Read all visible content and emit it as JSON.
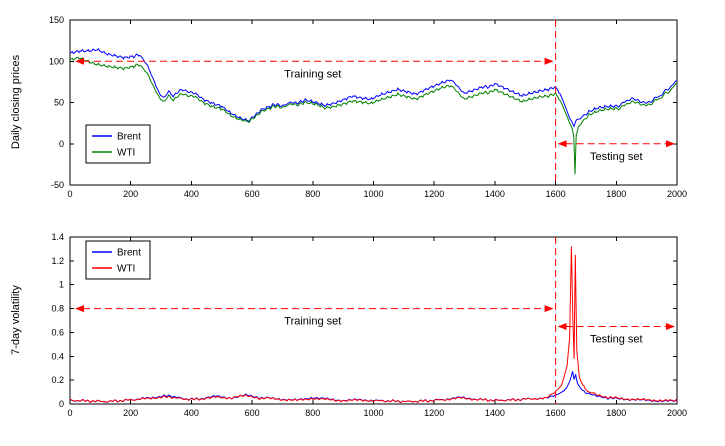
{
  "figure": {
    "background": "#ffffff"
  },
  "colors": {
    "annotation": "#ff0000",
    "axis": "#000000",
    "brent": "#0000ff",
    "wti_price": "#008000",
    "wti_volatility": "#ff0000"
  },
  "chart_data": [
    {
      "type": "line",
      "title": "",
      "xlabel": "",
      "ylabel": "Daily closing prices",
      "xlim": [
        0,
        2000
      ],
      "ylim": [
        -50,
        150
      ],
      "xticks": [
        0,
        200,
        400,
        600,
        800,
        1000,
        1200,
        1400,
        1600,
        1800,
        2000
      ],
      "yticks": [
        -50,
        0,
        50,
        100,
        150
      ],
      "grid": false,
      "legend": {
        "position": "lower-left"
      },
      "series": [
        {
          "name": "Brent",
          "color": "#0000ff",
          "points": [
            [
              0,
              109
            ],
            [
              30,
              112
            ],
            [
              60,
              113
            ],
            [
              90,
              115
            ],
            [
              120,
              110
            ],
            [
              150,
              107
            ],
            [
              180,
              104
            ],
            [
              210,
              105
            ],
            [
              230,
              108
            ],
            [
              255,
              95
            ],
            [
              275,
              78
            ],
            [
              295,
              60
            ],
            [
              310,
              55
            ],
            [
              325,
              63
            ],
            [
              340,
              57
            ],
            [
              360,
              65
            ],
            [
              385,
              64
            ],
            [
              410,
              61
            ],
            [
              440,
              53
            ],
            [
              470,
              49
            ],
            [
              500,
              46
            ],
            [
              530,
              38
            ],
            [
              560,
              32
            ],
            [
              590,
              28
            ],
            [
              610,
              34
            ],
            [
              630,
              42
            ],
            [
              660,
              46
            ],
            [
              700,
              47
            ],
            [
              740,
              50
            ],
            [
              780,
              52
            ],
            [
              810,
              50
            ],
            [
              840,
              47
            ],
            [
              870,
              50
            ],
            [
              900,
              54
            ],
            [
              930,
              58
            ],
            [
              960,
              55
            ],
            [
              990,
              53
            ],
            [
              1020,
              58
            ],
            [
              1050,
              62
            ],
            [
              1080,
              66
            ],
            [
              1110,
              64
            ],
            [
              1140,
              61
            ],
            [
              1170,
              66
            ],
            [
              1200,
              70
            ],
            [
              1230,
              74
            ],
            [
              1255,
              78
            ],
            [
              1275,
              70
            ],
            [
              1300,
              61
            ],
            [
              1330,
              64
            ],
            [
              1360,
              68
            ],
            [
              1400,
              72
            ],
            [
              1430,
              67
            ],
            [
              1460,
              62
            ],
            [
              1490,
              58
            ],
            [
              1520,
              62
            ],
            [
              1550,
              65
            ],
            [
              1580,
              67
            ],
            [
              1600,
              68
            ],
            [
              1615,
              60
            ],
            [
              1630,
              47
            ],
            [
              1645,
              32
            ],
            [
              1655,
              25
            ],
            [
              1661,
              21
            ],
            [
              1666,
              27
            ],
            [
              1675,
              29
            ],
            [
              1690,
              34
            ],
            [
              1710,
              39
            ],
            [
              1740,
              43
            ],
            [
              1770,
              44
            ],
            [
              1800,
              45
            ],
            [
              1825,
              50
            ],
            [
              1850,
              55
            ],
            [
              1875,
              52
            ],
            [
              1900,
              49
            ],
            [
              1925,
              54
            ],
            [
              1950,
              60
            ],
            [
              1975,
              68
            ],
            [
              2000,
              76
            ]
          ]
        },
        {
          "name": "WTI",
          "color": "#008000",
          "points": [
            [
              0,
              101
            ],
            [
              30,
              104
            ],
            [
              60,
              100
            ],
            [
              90,
              97
            ],
            [
              120,
              95
            ],
            [
              150,
              93
            ],
            [
              180,
              91
            ],
            [
              210,
              93
            ],
            [
              230,
              96
            ],
            [
              255,
              85
            ],
            [
              275,
              70
            ],
            [
              295,
              55
            ],
            [
              310,
              50
            ],
            [
              325,
              58
            ],
            [
              340,
              52
            ],
            [
              360,
              60
            ],
            [
              385,
              59
            ],
            [
              410,
              57
            ],
            [
              440,
              49
            ],
            [
              470,
              45
            ],
            [
              500,
              43
            ],
            [
              530,
              35
            ],
            [
              560,
              30
            ],
            [
              590,
              27
            ],
            [
              610,
              32
            ],
            [
              630,
              40
            ],
            [
              660,
              44
            ],
            [
              700,
              45
            ],
            [
              740,
              48
            ],
            [
              780,
              49
            ],
            [
              810,
              48
            ],
            [
              840,
              44
            ],
            [
              870,
              46
            ],
            [
              900,
              49
            ],
            [
              930,
              52
            ],
            [
              960,
              50
            ],
            [
              990,
              48
            ],
            [
              1020,
              52
            ],
            [
              1050,
              56
            ],
            [
              1080,
              60
            ],
            [
              1110,
              58
            ],
            [
              1140,
              55
            ],
            [
              1170,
              60
            ],
            [
              1200,
              64
            ],
            [
              1230,
              68
            ],
            [
              1255,
              71
            ],
            [
              1275,
              63
            ],
            [
              1300,
              54
            ],
            [
              1330,
              57
            ],
            [
              1360,
              61
            ],
            [
              1400,
              65
            ],
            [
              1430,
              60
            ],
            [
              1460,
              55
            ],
            [
              1490,
              51
            ],
            [
              1520,
              55
            ],
            [
              1550,
              58
            ],
            [
              1580,
              59
            ],
            [
              1600,
              60
            ],
            [
              1615,
              52
            ],
            [
              1630,
              40
            ],
            [
              1645,
              26
            ],
            [
              1655,
              18
            ],
            [
              1660,
              8
            ],
            [
              1664,
              -37
            ],
            [
              1668,
              10
            ],
            [
              1675,
              20
            ],
            [
              1690,
              28
            ],
            [
              1710,
              35
            ],
            [
              1740,
              39
            ],
            [
              1770,
              41
            ],
            [
              1800,
              42
            ],
            [
              1825,
              46
            ],
            [
              1850,
              51
            ],
            [
              1875,
              49
            ],
            [
              1900,
              46
            ],
            [
              1925,
              51
            ],
            [
              1950,
              57
            ],
            [
              1975,
              64
            ],
            [
              2000,
              73
            ]
          ]
        }
      ],
      "annotations": {
        "split_x": 1600,
        "training": {
          "label": "Training set",
          "y": 100,
          "x1": 10,
          "x2": 1600,
          "label_x": 800
        },
        "testing": {
          "label": "Testing set",
          "y": 0,
          "x1": 1600,
          "x2": 2000,
          "label_x": 1800
        }
      }
    },
    {
      "type": "line",
      "title": "",
      "xlabel": "",
      "ylabel": "7-day volatility",
      "xlim": [
        0,
        2000
      ],
      "ylim": [
        0,
        1.4
      ],
      "xticks": [
        0,
        200,
        400,
        600,
        800,
        1000,
        1200,
        1400,
        1600,
        1800,
        2000
      ],
      "yticks": [
        0,
        0.2,
        0.4,
        0.6,
        0.8,
        1,
        1.2,
        1.4
      ],
      "grid": false,
      "legend": {
        "position": "upper-left"
      },
      "series": [
        {
          "name": "Brent",
          "color": "#0000ff",
          "points": [
            [
              0,
              0.03
            ],
            [
              60,
              0.025
            ],
            [
              120,
              0.02
            ],
            [
              180,
              0.03
            ],
            [
              240,
              0.045
            ],
            [
              290,
              0.06
            ],
            [
              330,
              0.07
            ],
            [
              370,
              0.045
            ],
            [
              410,
              0.04
            ],
            [
              450,
              0.05
            ],
            [
              480,
              0.065
            ],
            [
              510,
              0.05
            ],
            [
              550,
              0.055
            ],
            [
              580,
              0.075
            ],
            [
              610,
              0.055
            ],
            [
              650,
              0.05
            ],
            [
              700,
              0.04
            ],
            [
              750,
              0.032
            ],
            [
              800,
              0.055
            ],
            [
              850,
              0.04
            ],
            [
              900,
              0.03
            ],
            [
              950,
              0.035
            ],
            [
              1000,
              0.03
            ],
            [
              1060,
              0.025
            ],
            [
              1120,
              0.02
            ],
            [
              1180,
              0.028
            ],
            [
              1240,
              0.04
            ],
            [
              1290,
              0.055
            ],
            [
              1340,
              0.04
            ],
            [
              1400,
              0.03
            ],
            [
              1460,
              0.035
            ],
            [
              1520,
              0.045
            ],
            [
              1570,
              0.05
            ],
            [
              1600,
              0.07
            ],
            [
              1620,
              0.1
            ],
            [
              1638,
              0.14
            ],
            [
              1650,
              0.22
            ],
            [
              1656,
              0.27
            ],
            [
              1661,
              0.21
            ],
            [
              1666,
              0.25
            ],
            [
              1672,
              0.17
            ],
            [
              1685,
              0.12
            ],
            [
              1700,
              0.09
            ],
            [
              1730,
              0.07
            ],
            [
              1760,
              0.055
            ],
            [
              1800,
              0.045
            ],
            [
              1850,
              0.038
            ],
            [
              1900,
              0.03
            ],
            [
              1950,
              0.026
            ],
            [
              2000,
              0.022
            ]
          ]
        },
        {
          "name": "WTI",
          "color": "#ff0000",
          "points": [
            [
              0,
              0.032
            ],
            [
              60,
              0.026
            ],
            [
              120,
              0.021
            ],
            [
              180,
              0.03
            ],
            [
              240,
              0.042
            ],
            [
              290,
              0.055
            ],
            [
              330,
              0.06
            ],
            [
              370,
              0.042
            ],
            [
              410,
              0.038
            ],
            [
              450,
              0.046
            ],
            [
              480,
              0.058
            ],
            [
              510,
              0.046
            ],
            [
              550,
              0.06
            ],
            [
              580,
              0.068
            ],
            [
              610,
              0.05
            ],
            [
              650,
              0.048
            ],
            [
              700,
              0.038
            ],
            [
              750,
              0.03
            ],
            [
              800,
              0.048
            ],
            [
              850,
              0.036
            ],
            [
              900,
              0.028
            ],
            [
              950,
              0.032
            ],
            [
              1000,
              0.028
            ],
            [
              1060,
              0.024
            ],
            [
              1120,
              0.02
            ],
            [
              1180,
              0.026
            ],
            [
              1240,
              0.038
            ],
            [
              1290,
              0.05
            ],
            [
              1340,
              0.038
            ],
            [
              1400,
              0.03
            ],
            [
              1460,
              0.034
            ],
            [
              1520,
              0.044
            ],
            [
              1570,
              0.05
            ],
            [
              1600,
              0.1
            ],
            [
              1620,
              0.16
            ],
            [
              1638,
              0.32
            ],
            [
              1646,
              0.55
            ],
            [
              1652,
              1.32
            ],
            [
              1657,
              0.7
            ],
            [
              1661,
              0.38
            ],
            [
              1665,
              1.25
            ],
            [
              1670,
              0.45
            ],
            [
              1678,
              0.22
            ],
            [
              1690,
              0.16
            ],
            [
              1705,
              0.11
            ],
            [
              1730,
              0.08
            ],
            [
              1760,
              0.06
            ],
            [
              1800,
              0.05
            ],
            [
              1850,
              0.04
            ],
            [
              1900,
              0.034
            ],
            [
              1950,
              0.03
            ],
            [
              2000,
              0.026
            ]
          ]
        }
      ],
      "annotations": {
        "split_x": 1600,
        "training": {
          "label": "Training set",
          "y": 0.8,
          "x1": 10,
          "x2": 1600,
          "label_x": 800
        },
        "testing": {
          "label": "Testing set",
          "y": 0.65,
          "x1": 1600,
          "x2": 2000,
          "label_x": 1800
        }
      }
    }
  ]
}
